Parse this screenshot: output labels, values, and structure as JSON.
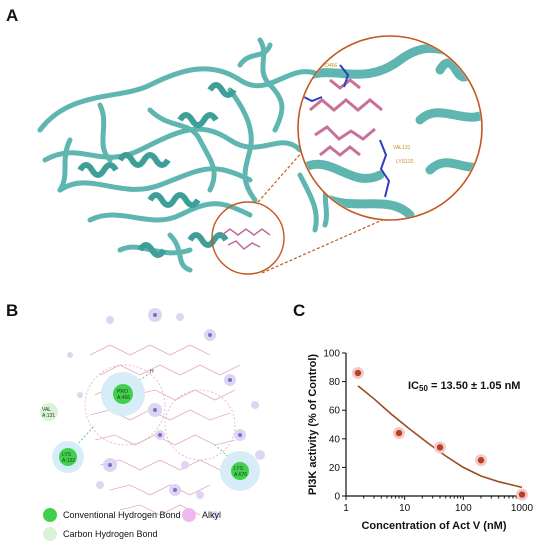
{
  "panels": {
    "a": "A",
    "b": "B",
    "c": "C"
  },
  "panel_a": {
    "zoom_labels": [
      "PRO466",
      "VAL131",
      "LYS132"
    ]
  },
  "panel_b": {
    "residues": [
      {
        "label": "PRO\nA:466",
        "type": "conventional"
      },
      {
        "label": "VAL\nA:131",
        "type": "carbon"
      },
      {
        "label": "LYS\nA:132",
        "type": "conventional"
      },
      {
        "label": "LYS\nA:676",
        "type": "conventional"
      }
    ],
    "h_label": "H",
    "legend": [
      {
        "label": "Conventional Hydrogen Bond",
        "color": "#3ed24a"
      },
      {
        "label": "Alkyl",
        "color": "#f0b8ee"
      },
      {
        "label": "Carbon Hydrogen Bond",
        "color": "#d9f3d6"
      }
    ]
  },
  "chart_data": {
    "type": "scatter",
    "annotation": "IC50 = 13.50 ± 1.05 nM",
    "annotation_parts": {
      "prefix": "IC",
      "sub": "50",
      "suffix": " = 13.50 ± 1.05 nM"
    },
    "xlabel": "Concentration of Act V (nM)",
    "ylabel": "PI3K activity (% of Control)",
    "xscale": "log",
    "xlim": [
      1,
      1000
    ],
    "ylim": [
      0,
      100
    ],
    "xticks": [
      1,
      10,
      100,
      1000
    ],
    "yticks": [
      0,
      20,
      40,
      60,
      80,
      100
    ],
    "points": [
      {
        "x": 1.6,
        "y": 86
      },
      {
        "x": 8,
        "y": 44
      },
      {
        "x": 40,
        "y": 34
      },
      {
        "x": 200,
        "y": 25
      },
      {
        "x": 1000,
        "y": 1
      }
    ],
    "fit_curve": [
      {
        "x": 1.6,
        "y": 77
      },
      {
        "x": 3,
        "y": 68
      },
      {
        "x": 6,
        "y": 57
      },
      {
        "x": 12,
        "y": 47
      },
      {
        "x": 25,
        "y": 37
      },
      {
        "x": 50,
        "y": 28
      },
      {
        "x": 100,
        "y": 20
      },
      {
        "x": 200,
        "y": 14
      },
      {
        "x": 400,
        "y": 10
      },
      {
        "x": 1000,
        "y": 6
      }
    ],
    "colors": {
      "point": "#b8421a",
      "halo": "#f3c9cf",
      "curve": "#9c4a1e"
    }
  }
}
